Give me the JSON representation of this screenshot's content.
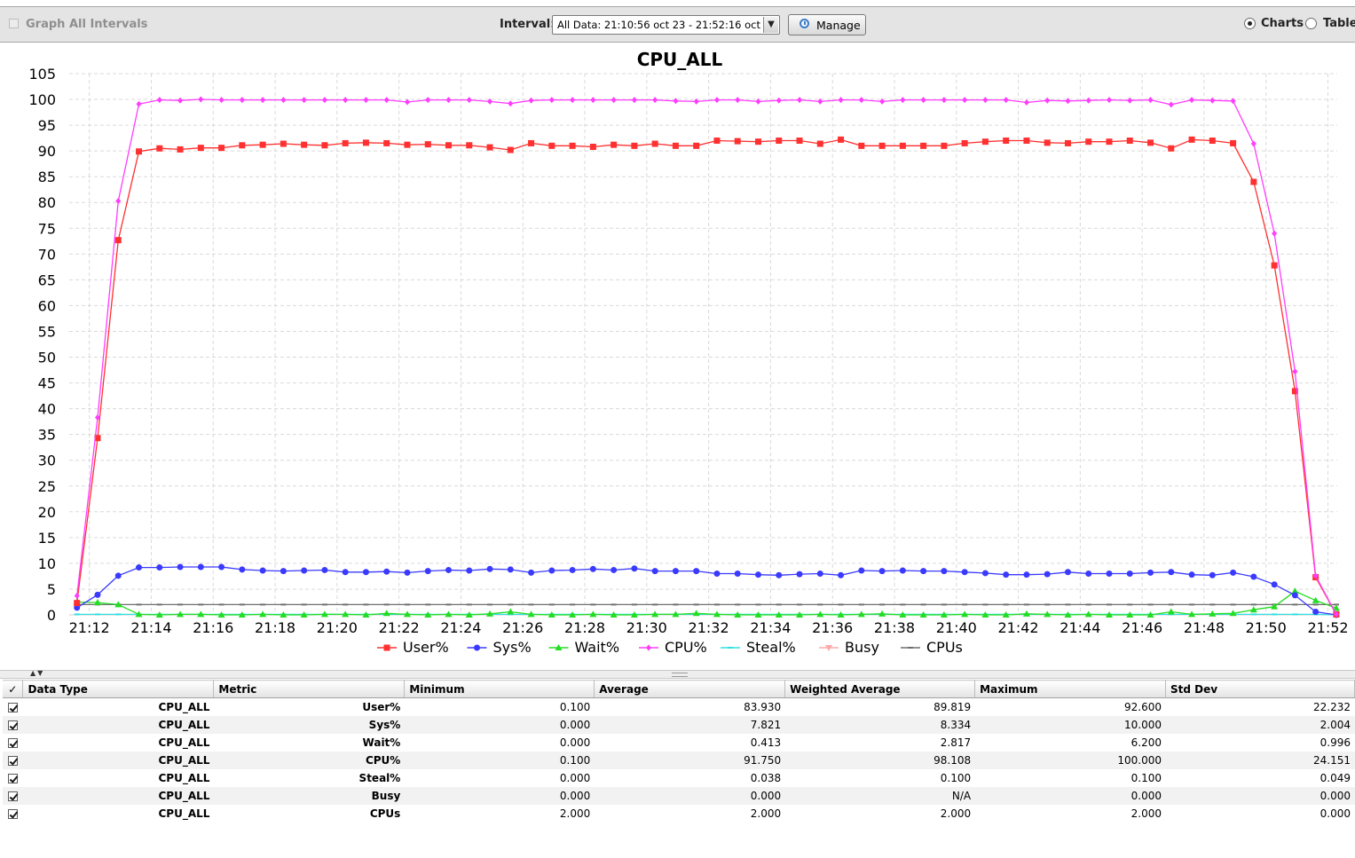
{
  "toolbar": {
    "graph_all_label": "Graph All Intervals",
    "interval_label": "Interval:",
    "interval_value": "All Data: 21:10:56 oct 23 - 21:52:16 oct 23",
    "manage_label": "Manage",
    "view_options": [
      {
        "label": "Charts",
        "selected": true
      },
      {
        "label": "Table",
        "selected": false
      }
    ]
  },
  "chart_data": {
    "type": "line",
    "title": "CPU_ALL",
    "xlabel": "",
    "ylabel": "",
    "x_ticks": [
      "21:12",
      "21:14",
      "21:16",
      "21:18",
      "21:20",
      "21:22",
      "21:24",
      "21:26",
      "21:28",
      "21:30",
      "21:32",
      "21:34",
      "21:36",
      "21:38",
      "21:40",
      "21:42",
      "21:44",
      "21:46",
      "21:48",
      "21:50",
      "21:52"
    ],
    "x_tick_minutes": [
      12,
      14,
      16,
      18,
      20,
      22,
      24,
      26,
      28,
      30,
      32,
      34,
      36,
      38,
      40,
      42,
      44,
      46,
      48,
      50,
      52
    ],
    "x_range_minutes": [
      11.35,
      52.3
    ],
    "ylim": [
      0,
      105
    ],
    "y_ticks": [
      0,
      5,
      10,
      15,
      20,
      25,
      30,
      35,
      40,
      45,
      50,
      55,
      60,
      65,
      70,
      75,
      80,
      85,
      90,
      95,
      100,
      105
    ],
    "grid": true,
    "legend_position": "bottom",
    "x_start_minute": 11.6,
    "x_step_minutes": 0.6667,
    "series": [
      {
        "name": "User%",
        "color": "#ff3030",
        "marker": "square",
        "values": [
          2.3,
          34.3,
          72.7,
          89.9,
          90.5,
          90.3,
          90.6,
          90.6,
          91.1,
          91.2,
          91.4,
          91.2,
          91.1,
          91.5,
          91.6,
          91.5,
          91.2,
          91.3,
          91.1,
          91.1,
          90.7,
          90.2,
          91.5,
          91.0,
          91.0,
          90.8,
          91.2,
          91.0,
          91.4,
          91.0,
          91.0,
          92.0,
          91.9,
          91.8,
          92.0,
          92.0,
          91.4,
          92.2,
          91.0,
          91.0,
          91.0,
          91.0,
          91.0,
          91.5,
          91.8,
          92.0,
          92.0,
          91.6,
          91.5,
          91.8,
          91.8,
          92.0,
          91.6,
          90.5,
          92.2,
          92.0,
          91.5,
          84.0,
          67.8,
          43.4,
          7.3,
          0.1
        ]
      },
      {
        "name": "Sys%",
        "color": "#3a3aff",
        "marker": "circle",
        "values": [
          1.4,
          3.9,
          7.6,
          9.2,
          9.2,
          9.3,
          9.3,
          9.3,
          8.8,
          8.6,
          8.5,
          8.6,
          8.7,
          8.3,
          8.3,
          8.4,
          8.2,
          8.5,
          8.7,
          8.6,
          8.9,
          8.8,
          8.2,
          8.6,
          8.7,
          8.9,
          8.7,
          9.0,
          8.5,
          8.5,
          8.5,
          8.0,
          8.0,
          7.8,
          7.7,
          7.9,
          8.0,
          7.7,
          8.6,
          8.5,
          8.6,
          8.5,
          8.5,
          8.3,
          8.1,
          7.8,
          7.8,
          7.9,
          8.3,
          8.0,
          8.0,
          8.0,
          8.2,
          8.3,
          7.8,
          7.7,
          8.2,
          7.4,
          5.9,
          3.8,
          0.6,
          0.0
        ]
      },
      {
        "name": "Wait%",
        "color": "#22dd22",
        "marker": "triangle",
        "values": [
          2.5,
          2.4,
          2.0,
          0.1,
          0.0,
          0.1,
          0.1,
          0.0,
          0.0,
          0.1,
          0.0,
          0.0,
          0.1,
          0.1,
          0.0,
          0.3,
          0.1,
          0.0,
          0.1,
          0.0,
          0.2,
          0.6,
          0.1,
          0.0,
          0.0,
          0.1,
          0.0,
          0.0,
          0.1,
          0.1,
          0.3,
          0.1,
          0.0,
          0.0,
          0.0,
          0.0,
          0.1,
          0.0,
          0.1,
          0.2,
          0.0,
          0.0,
          0.0,
          0.1,
          0.0,
          0.0,
          0.2,
          0.1,
          0.0,
          0.1,
          0.0,
          0.0,
          0.0,
          0.6,
          0.1,
          0.2,
          0.3,
          1.0,
          1.6,
          4.6,
          2.8,
          1.3
        ]
      },
      {
        "name": "CPU%",
        "color": "#ff3cff",
        "marker": "diamond",
        "values": [
          3.7,
          38.3,
          80.3,
          99.1,
          99.9,
          99.8,
          100.0,
          99.9,
          99.9,
          99.9,
          99.9,
          99.9,
          99.9,
          99.9,
          99.9,
          99.9,
          99.5,
          99.9,
          99.9,
          99.9,
          99.6,
          99.2,
          99.8,
          99.9,
          99.9,
          99.9,
          99.9,
          99.9,
          99.9,
          99.7,
          99.6,
          99.9,
          99.9,
          99.6,
          99.8,
          99.9,
          99.6,
          99.9,
          99.9,
          99.6,
          99.9,
          99.9,
          99.9,
          99.9,
          99.9,
          99.9,
          99.4,
          99.8,
          99.7,
          99.8,
          99.9,
          99.8,
          99.9,
          99.0,
          99.9,
          99.8,
          99.7,
          91.4,
          74.0,
          47.2,
          7.6,
          0.1
        ]
      },
      {
        "name": "Steal%",
        "color": "#30e0e0",
        "marker": "dash",
        "values": [
          0.1,
          0.1,
          0.1,
          0.1,
          0.1,
          0.1,
          0.1,
          0.1,
          0.1,
          0.1,
          0.1,
          0.1,
          0.1,
          0.1,
          0.1,
          0.1,
          0.1,
          0.1,
          0.1,
          0.1,
          0.1,
          0.1,
          0.1,
          0.1,
          0.1,
          0.1,
          0.1,
          0.1,
          0.1,
          0.1,
          0.1,
          0.1,
          0.1,
          0.1,
          0.1,
          0.1,
          0.1,
          0.1,
          0.1,
          0.1,
          0.1,
          0.1,
          0.1,
          0.1,
          0.1,
          0.1,
          0.1,
          0.1,
          0.1,
          0.1,
          0.1,
          0.1,
          0.1,
          0.1,
          0.1,
          0.1,
          0.1,
          0.1,
          0.1,
          0.1,
          0.1,
          0.0
        ]
      },
      {
        "name": "Busy",
        "color": "#ffaaaa",
        "marker": "triangle-down",
        "values": []
      },
      {
        "name": "CPUs",
        "color": "#6e6e6e",
        "marker": "dash",
        "values": [
          2,
          2,
          2,
          2,
          2,
          2,
          2,
          2,
          2,
          2,
          2,
          2,
          2,
          2,
          2,
          2,
          2,
          2,
          2,
          2,
          2,
          2,
          2,
          2,
          2,
          2,
          2,
          2,
          2,
          2,
          2,
          2,
          2,
          2,
          2,
          2,
          2,
          2,
          2,
          2,
          2,
          2,
          2,
          2,
          2,
          2,
          2,
          2,
          2,
          2,
          2,
          2,
          2,
          2,
          2,
          2,
          2,
          2,
          2,
          2,
          2,
          2
        ]
      }
    ]
  },
  "table": {
    "columns": [
      "Data Type",
      "Metric",
      "Minimum",
      "Average",
      "Weighted Average",
      "Maximum",
      "Std Dev"
    ],
    "rows": [
      {
        "data_type": "CPU_ALL",
        "metric": "User%",
        "min": "0.100",
        "avg": "83.930",
        "wavg": "89.819",
        "max": "92.600",
        "std": "22.232"
      },
      {
        "data_type": "CPU_ALL",
        "metric": "Sys%",
        "min": "0.000",
        "avg": "7.821",
        "wavg": "8.334",
        "max": "10.000",
        "std": "2.004"
      },
      {
        "data_type": "CPU_ALL",
        "metric": "Wait%",
        "min": "0.000",
        "avg": "0.413",
        "wavg": "2.817",
        "max": "6.200",
        "std": "0.996"
      },
      {
        "data_type": "CPU_ALL",
        "metric": "CPU%",
        "min": "0.100",
        "avg": "91.750",
        "wavg": "98.108",
        "max": "100.000",
        "std": "24.151"
      },
      {
        "data_type": "CPU_ALL",
        "metric": "Steal%",
        "min": "0.000",
        "avg": "0.038",
        "wavg": "0.100",
        "max": "0.100",
        "std": "0.049"
      },
      {
        "data_type": "CPU_ALL",
        "metric": "Busy",
        "min": "0.000",
        "avg": "0.000",
        "wavg": "N/A",
        "max": "0.000",
        "std": "0.000"
      },
      {
        "data_type": "CPU_ALL",
        "metric": "CPUs",
        "min": "2.000",
        "avg": "2.000",
        "wavg": "2.000",
        "max": "2.000",
        "std": "0.000"
      }
    ]
  }
}
